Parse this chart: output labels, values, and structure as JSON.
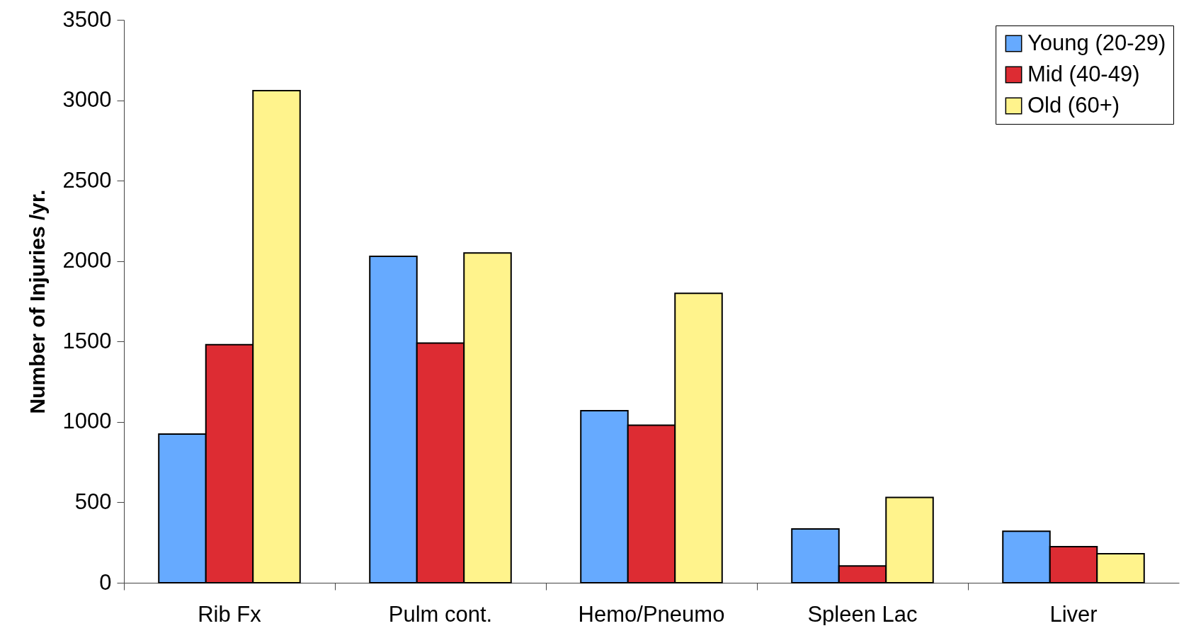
{
  "chart_data": {
    "type": "bar",
    "ylabel": "Number of Injuries /yr.",
    "categories": [
      "Rib Fx",
      "Pulm cont.",
      "Hemo/Pneumo",
      "Spleen Lac",
      "Liver"
    ],
    "series": [
      {
        "name": "Young (20-29)",
        "color": "#66aaff",
        "values": [
          925,
          2030,
          1070,
          335,
          320
        ]
      },
      {
        "name": "Mid (40-49)",
        "color": "#dd2c33",
        "values": [
          1480,
          1490,
          980,
          105,
          225
        ]
      },
      {
        "name": "Old (60+)",
        "color": "#fff38c",
        "values": [
          3060,
          2050,
          1800,
          530,
          180
        ]
      }
    ],
    "ylim": [
      0,
      3500
    ],
    "yticks": [
      0,
      500,
      1000,
      1500,
      2000,
      2500,
      3000,
      3500
    ],
    "grid": false,
    "legend": "top right"
  }
}
